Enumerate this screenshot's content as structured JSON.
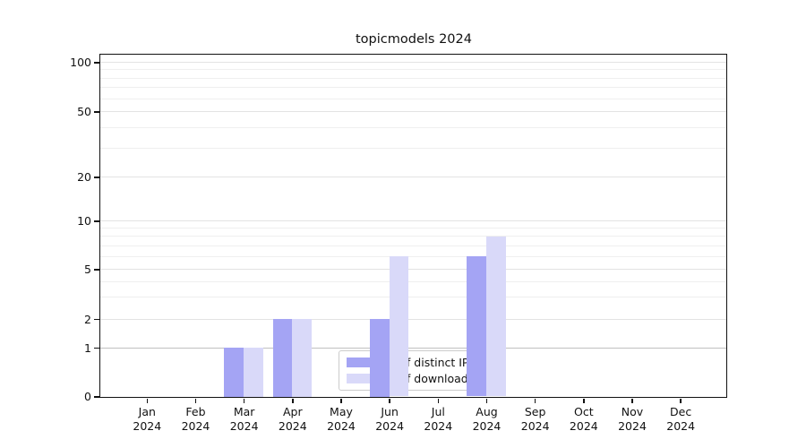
{
  "chart_data": {
    "type": "bar",
    "title": "topicmodels 2024",
    "x_months": [
      "Jan",
      "Feb",
      "Mar",
      "Apr",
      "May",
      "Jun",
      "Jul",
      "Aug",
      "Sep",
      "Oct",
      "Nov",
      "Dec"
    ],
    "x_year": "2024",
    "series": [
      {
        "name": "Nb of distinct IPs",
        "color": "#a4a4f4",
        "values": [
          0,
          0,
          1,
          2,
          0,
          2,
          0,
          6,
          0,
          0,
          0,
          0
        ]
      },
      {
        "name": "Nb of downloads",
        "color": "#d9d9f9",
        "values": [
          0,
          0,
          1,
          2,
          0,
          6,
          0,
          8,
          0,
          0,
          0,
          0
        ]
      }
    ],
    "y_scale": "symlog",
    "y_ticks": [
      0,
      1,
      2,
      5,
      10,
      20,
      50,
      100
    ],
    "y_minor_gridlines": [
      3,
      4,
      6,
      7,
      8,
      9,
      30,
      40,
      60,
      70,
      80,
      90
    ],
    "ylim": [
      0,
      112
    ],
    "grid": "horizontal, major and minor",
    "legend_position": "inside bottom-center"
  },
  "colors": {
    "bar_distinct_ips": "#a4a4f4",
    "bar_downloads": "#d9d9f9",
    "grid_minor": "#efefef",
    "grid_major": "#e3e3e3",
    "grid_unit_line": "#c0c0c0",
    "axis": "#111111",
    "legend_border": "#cccccc",
    "text": "#111111"
  }
}
